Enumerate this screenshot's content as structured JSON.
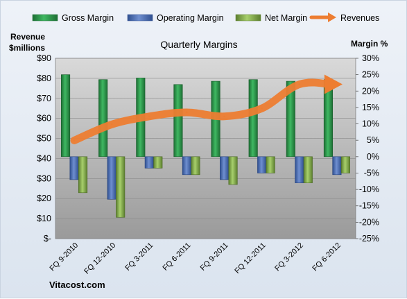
{
  "chart_data": {
    "type": "bar",
    "title": "Quarterly Margins",
    "categories": [
      "FQ 9-2010",
      "FQ 12-2010",
      "FQ 3-2011",
      "FQ 6-2011",
      "FQ 9-2011",
      "FQ 12-2011",
      "FQ 3-2012",
      "FQ 6-2012"
    ],
    "series": [
      {
        "name": "Gross Margin",
        "axis": "right",
        "color": "#2e9b4f",
        "values": [
          25,
          23.5,
          24,
          22,
          23,
          23.5,
          23,
          23.5
        ]
      },
      {
        "name": "Operating Margin",
        "axis": "right",
        "color": "#4f6fb5",
        "values": [
          -7,
          -13,
          -3.5,
          -5.5,
          -7,
          -5,
          -8,
          -5.5
        ]
      },
      {
        "name": "Net Margin",
        "axis": "right",
        "color": "#8db654",
        "values": [
          -11,
          -18.5,
          -3.5,
          -5.5,
          -8.5,
          -5,
          -8,
          -5
        ]
      },
      {
        "name": "Revenues",
        "axis": "left",
        "type": "line",
        "color": "#ed7d31",
        "values": [
          49,
          57,
          61,
          63,
          61,
          65,
          77,
          77
        ]
      }
    ],
    "left_axis": {
      "label": "Revenue $millions",
      "ylim": [
        0,
        90
      ],
      "ticks": [
        "$-",
        "$10",
        "$20",
        "$30",
        "$40",
        "$50",
        "$60",
        "$70",
        "$80",
        "$90"
      ]
    },
    "right_axis": {
      "label": "Margin %",
      "ylim": [
        -25,
        30
      ],
      "ticks": [
        "-25%",
        "-20%",
        "-15%",
        "-10%",
        "-5%",
        "0%",
        "5%",
        "10%",
        "15%",
        "20%",
        "25%",
        "30%"
      ]
    },
    "legend_position": "top",
    "grid": true
  },
  "footer": {
    "source": "Vitacost.com"
  }
}
